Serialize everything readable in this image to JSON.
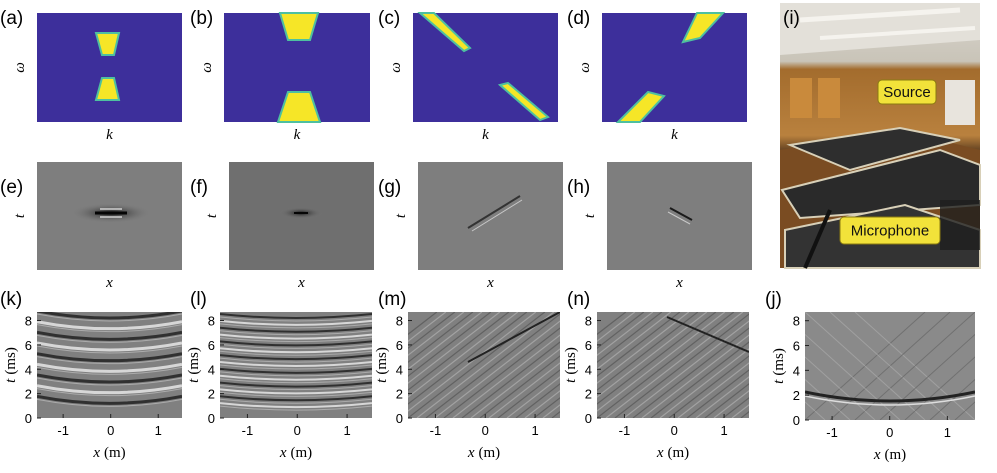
{
  "panels": [
    {
      "label": "(a)",
      "xlabel": "k",
      "ylabel": "ω"
    },
    {
      "label": "(b)",
      "xlabel": "k",
      "ylabel": "ω"
    },
    {
      "label": "(c)",
      "xlabel": "k",
      "ylabel": "ω"
    },
    {
      "label": "(d)",
      "xlabel": "k",
      "ylabel": "ω"
    },
    {
      "label": "(e)",
      "xlabel": "x",
      "ylabel": "t"
    },
    {
      "label": "(f)",
      "xlabel": "x",
      "ylabel": "t"
    },
    {
      "label": "(g)",
      "xlabel": "x",
      "ylabel": "t"
    },
    {
      "label": "(h)",
      "xlabel": "x",
      "ylabel": "t"
    },
    {
      "label": "(i)",
      "annotations": [
        "Source",
        "Microphone"
      ]
    },
    {
      "label": "(k)",
      "xlabel": {
        "var": "x",
        "unit": "(m)"
      },
      "ylabel": {
        "var": "t",
        "unit": "(ms)"
      },
      "xlim": [
        -1.55,
        1.5
      ],
      "ylim": [
        0,
        8.7
      ],
      "xticks": [
        -1,
        0,
        1
      ],
      "yticks": [
        0,
        2,
        4,
        6,
        8
      ]
    },
    {
      "label": "(l)",
      "xlabel": {
        "var": "x",
        "unit": "(m)"
      },
      "ylabel": {
        "var": "t",
        "unit": "(ms)"
      },
      "xlim": [
        -1.55,
        1.5
      ],
      "ylim": [
        0,
        8.7
      ],
      "xticks": [
        -1,
        0,
        1
      ],
      "yticks": [
        0,
        2,
        4,
        6,
        8
      ]
    },
    {
      "label": "(m)",
      "xlabel": {
        "var": "x",
        "unit": "(m)"
      },
      "ylabel": {
        "var": "t",
        "unit": "(ms)"
      },
      "xlim": [
        -1.55,
        1.5
      ],
      "ylim": [
        0,
        8.7
      ],
      "xticks": [
        -1,
        0,
        1
      ],
      "yticks": [
        0,
        2,
        4,
        6,
        8
      ]
    },
    {
      "label": "(n)",
      "xlabel": {
        "var": "x",
        "unit": "(m)"
      },
      "ylabel": {
        "var": "t",
        "unit": "(ms)"
      },
      "xlim": [
        -1.55,
        1.5
      ],
      "ylim": [
        0,
        8.7
      ],
      "xticks": [
        -1,
        0,
        1
      ],
      "yticks": [
        0,
        2,
        4,
        6,
        8
      ]
    },
    {
      "label": "(j)",
      "xlabel": {
        "var": "x",
        "unit": "(m)"
      },
      "ylabel": {
        "var": "t",
        "unit": "(ms)"
      },
      "xlim": [
        -1.47,
        1.48
      ],
      "ylim": [
        0,
        8.7
      ],
      "xticks": [
        -1,
        0,
        1
      ],
      "yticks": [
        0,
        2,
        4,
        6,
        8
      ]
    }
  ]
}
